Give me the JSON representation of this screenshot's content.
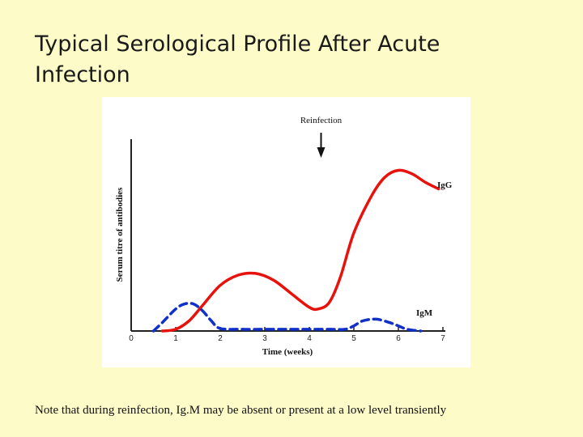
{
  "slide": {
    "title": "Typical Serological Profile After Acute Infection",
    "note": "Note that during reinfection, Ig.M may be absent or present at a low level transiently"
  },
  "chart_data": {
    "type": "line",
    "xlabel": "Time (weeks)",
    "ylabel": "Serum titre of antibodies",
    "xlim": [
      0,
      7
    ],
    "ylim": [
      0,
      100
    ],
    "x_ticks": [
      0,
      1,
      2,
      3,
      4,
      5,
      6,
      7
    ],
    "y_ticks_shown": false,
    "grid": false,
    "annotations": [
      {
        "text": "Reinfection",
        "x": 4.5,
        "arrow": "down"
      }
    ],
    "series": [
      {
        "name": "IgG",
        "color": "#e8120c",
        "style": "solid",
        "x": [
          0.7,
          1.0,
          1.3,
          1.6,
          2.0,
          2.4,
          2.8,
          3.2,
          3.6,
          4.0,
          4.2,
          4.45,
          4.7,
          5.0,
          5.4,
          5.7,
          6.0,
          6.3,
          6.6,
          6.9
        ],
        "y": [
          0,
          1,
          6,
          15,
          27,
          33,
          34,
          30,
          22,
          14,
          13,
          17,
          32,
          58,
          80,
          91,
          95,
          93,
          88,
          84
        ]
      },
      {
        "name": "IgM",
        "color": "#1030c8",
        "style": "dashed",
        "x": [
          0.5,
          0.7,
          1.0,
          1.2,
          1.4,
          1.6,
          1.8,
          2.0,
          2.5,
          3.0,
          3.5,
          4.0,
          4.5,
          4.8,
          5.0,
          5.2,
          5.5,
          5.8,
          6.0,
          6.2,
          6.5
        ],
        "y": [
          0,
          5,
          13,
          16,
          16,
          12,
          6,
          1.5,
          1,
          1,
          1,
          1,
          1,
          1,
          3,
          6,
          7,
          5,
          3,
          1,
          0
        ]
      }
    ]
  }
}
